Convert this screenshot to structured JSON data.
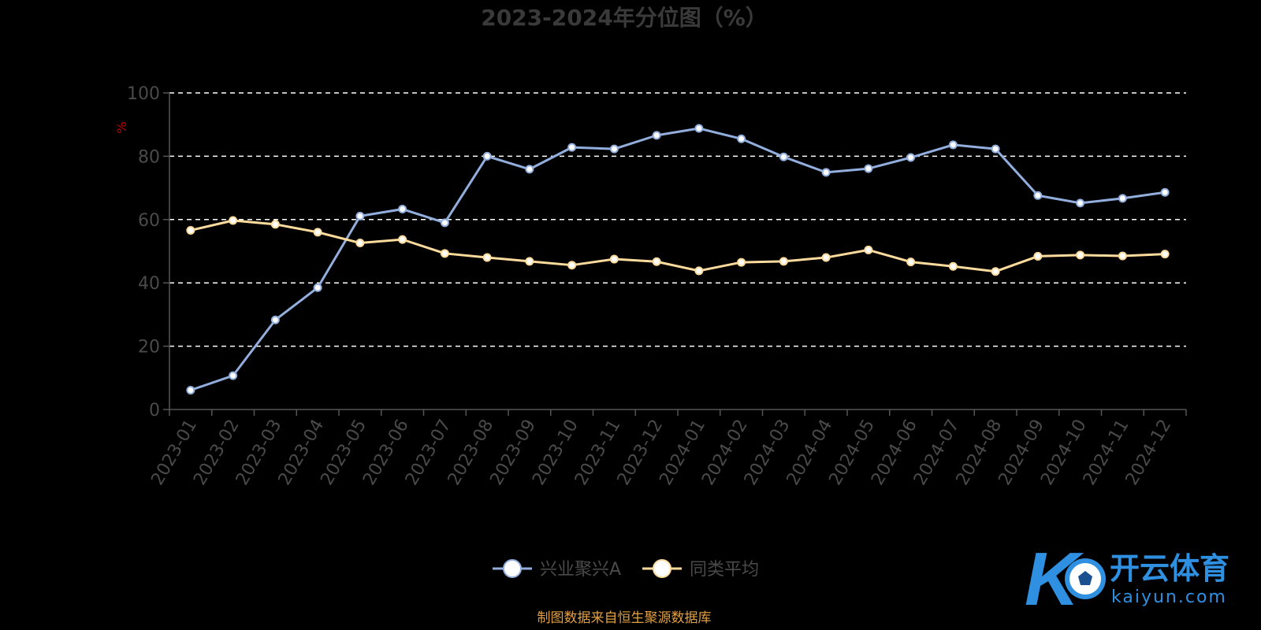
{
  "chart_data": {
    "type": "line",
    "title": "2023-2024年分位图（%）",
    "unit_label": "%",
    "ylim": [
      0,
      100
    ],
    "yticks": [
      0,
      20,
      40,
      60,
      80,
      100
    ],
    "grid": true,
    "legend_position": "bottom",
    "categories": [
      "2023-01",
      "2023-02",
      "2023-03",
      "2023-04",
      "2023-05",
      "2023-06",
      "2023-07",
      "2023-08",
      "2023-09",
      "2023-10",
      "2023-11",
      "2023-12",
      "2024-01",
      "2024-02",
      "2024-03",
      "2024-04",
      "2024-05",
      "2024-06",
      "2024-07",
      "2024-08",
      "2024-09",
      "2024-10",
      "2024-11",
      "2024-12"
    ],
    "series": [
      {
        "name": "兴业聚兴A",
        "color": "#92aedd",
        "values": [
          6.1,
          10.7,
          28.3,
          38.5,
          61.1,
          63.3,
          59.0,
          80.0,
          75.9,
          82.8,
          82.3,
          86.6,
          88.8,
          85.5,
          79.8,
          74.9,
          76.1,
          79.6,
          83.6,
          82.3,
          67.6,
          65.2,
          66.7,
          68.6
        ]
      },
      {
        "name": "同类平均",
        "color": "#fcdb9c",
        "values": [
          56.6,
          59.7,
          58.5,
          56.0,
          52.6,
          53.7,
          49.3,
          48.0,
          46.8,
          45.6,
          47.5,
          46.7,
          43.8,
          46.5,
          46.8,
          48.0,
          50.4,
          46.6,
          45.2,
          43.6,
          48.4,
          48.8,
          48.5,
          49.1
        ]
      }
    ]
  },
  "footer": {
    "source": "制图数据来自恒生聚源数据库"
  },
  "watermark": {
    "brand": "开云体育",
    "domain": "kaiyun.com",
    "logo_letter": "K"
  }
}
